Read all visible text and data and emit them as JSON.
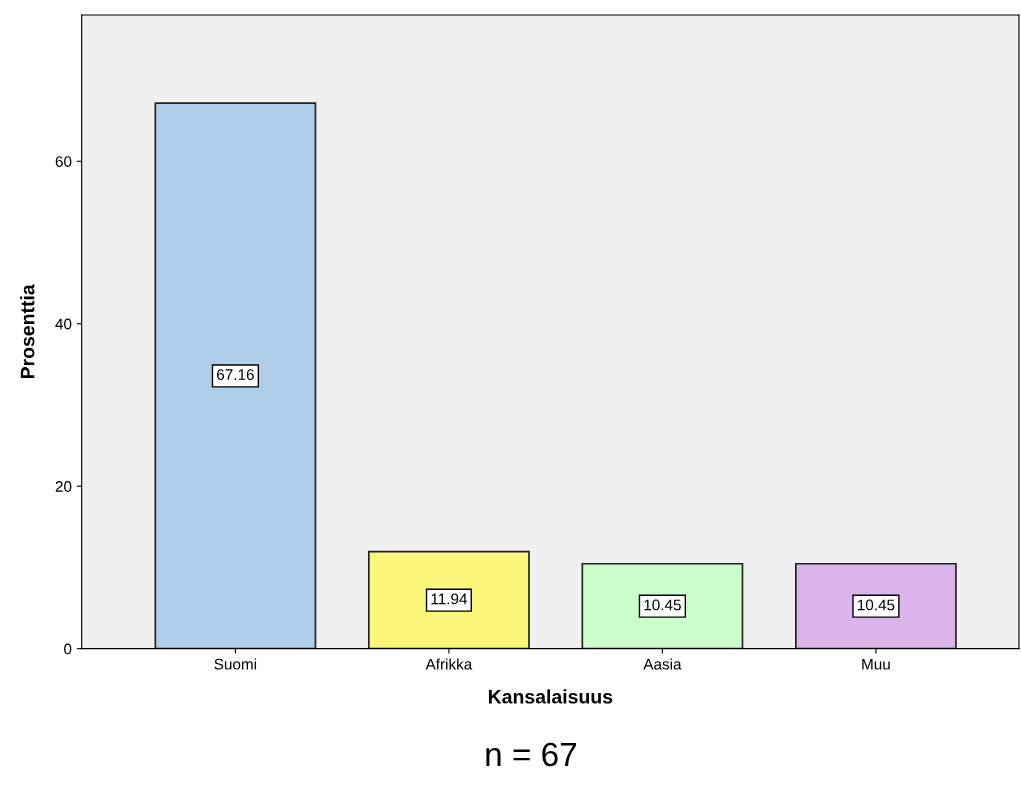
{
  "chart_data": {
    "type": "bar",
    "xlabel": "Kansalaisuus",
    "ylabel": "Prosenttia",
    "categories": [
      "Suomi",
      "Afrikka",
      "Aasia",
      "Muu"
    ],
    "values": [
      67.16,
      11.94,
      10.45,
      10.45
    ],
    "colors": [
      "#aecde9",
      "#fbf77a",
      "#ccffcc",
      "#dab4ea"
    ],
    "ylim": [
      0,
      78
    ],
    "yticks": [
      0,
      20,
      40,
      60
    ],
    "grid": false,
    "data_labels": true,
    "annotations": [
      "n = 67"
    ]
  }
}
